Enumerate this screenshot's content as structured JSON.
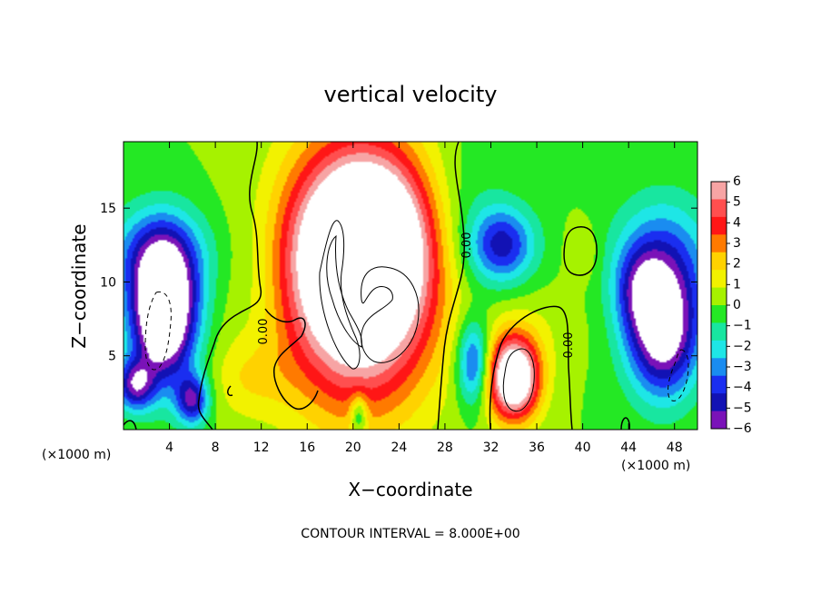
{
  "chart_data": {
    "type": "heatmap",
    "title": "vertical velocity",
    "xlabel": "X−coordinate",
    "ylabel": "Z−coordinate",
    "x_unit_left": "(×1000 m)",
    "x_unit_right": "(×1000 m)",
    "xlim": [
      0,
      50
    ],
    "ylim": [
      0,
      19.5
    ],
    "xticks": [
      4,
      8,
      12,
      16,
      20,
      24,
      28,
      32,
      36,
      40,
      44,
      48
    ],
    "xtick_labels": [
      "4",
      "8",
      "12",
      "16",
      "20",
      "24",
      "28",
      "32",
      "36",
      "40",
      "44",
      "48"
    ],
    "yticks": [
      5,
      10,
      15
    ],
    "ytick_labels": [
      "5",
      "10",
      "15"
    ],
    "colorbar": {
      "range": [
        -6,
        6
      ],
      "ticks": [
        "6",
        "5",
        "4",
        "3",
        "2",
        "1",
        "0",
        "−1",
        "−2",
        "−3",
        "−4",
        "−5",
        "−6"
      ],
      "colors": [
        "#f7a4a4",
        "#ff4f4f",
        "#ff1616",
        "#ff7a00",
        "#ffd200",
        "#f2f200",
        "#a6f200",
        "#24e824",
        "#18e6a0",
        "#1ee6e6",
        "#1a8cf0",
        "#1a2ef0",
        "#1212b4",
        "#7a12b8"
      ]
    },
    "zero_contour_label": "0.00",
    "contour_note": "CONTOUR INTERVAL = 8.000E+00",
    "features": [
      {
        "kind": "updraft",
        "x": 20.5,
        "z": 10.5,
        "sx": 4.6,
        "sz": 6.0,
        "amp": 10.0
      },
      {
        "kind": "updraft",
        "x": 21.5,
        "z": 12.8,
        "sx": 3.8,
        "sz": 3.6,
        "amp": 5.0
      },
      {
        "kind": "updraft",
        "x": 34,
        "z": 3.5,
        "sx": 1.6,
        "sz": 2.0,
        "amp": 9.0
      },
      {
        "kind": "updraft",
        "x": 11,
        "z": 3.5,
        "sx": 2.5,
        "sz": 2.0,
        "amp": 1.5
      },
      {
        "kind": "updraft",
        "x": 40,
        "z": 12.0,
        "sx": 1.0,
        "sz": 1.4,
        "amp": 1.0
      },
      {
        "kind": "updraft",
        "x": 36,
        "z": 7.0,
        "sx": 3.0,
        "sz": 2.0,
        "amp": 0.6
      },
      {
        "kind": "downdraft",
        "x": 3.5,
        "z": 8.0,
        "sx": 2.0,
        "sz": 3.2,
        "amp": -10.0
      },
      {
        "kind": "downdraft",
        "x": 3.0,
        "z": 12.0,
        "sx": 3.2,
        "sz": 2.2,
        "amp": -3.0
      },
      {
        "kind": "downdraft",
        "x": 1.0,
        "z": 3.0,
        "sx": 1.2,
        "sz": 1.2,
        "amp": -5.0
      },
      {
        "kind": "downdraft",
        "x": 6.0,
        "z": 2.0,
        "sx": 1.0,
        "sz": 1.2,
        "amp": -5.0
      },
      {
        "kind": "downdraft",
        "x": 47,
        "z": 6.5,
        "sx": 2.2,
        "sz": 3.0,
        "amp": -7.0
      },
      {
        "kind": "downdraft",
        "x": 47,
        "z": 11.5,
        "sx": 3.0,
        "sz": 3.0,
        "amp": -3.5
      },
      {
        "kind": "downdraft",
        "x": 45,
        "z": 9.5,
        "sx": 1.5,
        "sz": 2.0,
        "amp": -2.5
      },
      {
        "kind": "downdraft",
        "x": 30.5,
        "z": 4.5,
        "sx": 1.0,
        "sz": 2.0,
        "amp": -4.5
      },
      {
        "kind": "downdraft",
        "x": 33,
        "z": 12.5,
        "sx": 2.0,
        "sz": 1.8,
        "amp": -4.5
      },
      {
        "kind": "downdraft",
        "x": 29,
        "z": 14.0,
        "sx": 3.0,
        "sz": 4.0,
        "amp": -1.5
      },
      {
        "kind": "downdraft",
        "x": 20.5,
        "z": 1.0,
        "sx": 0.5,
        "sz": 1.0,
        "amp": -3.0
      },
      {
        "kind": "downdraft",
        "x": 12,
        "z": 10.0,
        "sx": 1.5,
        "sz": 5.0,
        "amp": -0.5
      }
    ]
  }
}
